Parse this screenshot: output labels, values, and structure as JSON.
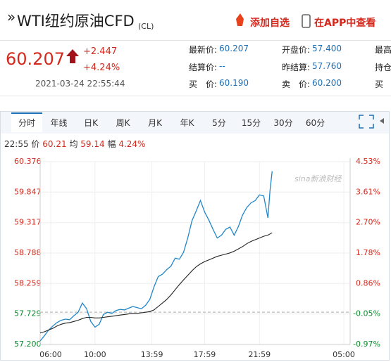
{
  "header": {
    "title": "WTI纽约原油CFD",
    "code": "(CL)",
    "add_watchlist": "添加自选",
    "view_in_app": "在APP中查看"
  },
  "quote": {
    "price": "60.207",
    "change": "+2.447",
    "change_pct": "+4.24%",
    "time": "2021-03-24 22:55:44",
    "fields": [
      {
        "label": "最新价:",
        "value": "60.207"
      },
      {
        "label": "开盘价:",
        "value": "57.400"
      },
      {
        "label": "最高"
      },
      {
        "label": "结算价:",
        "value": "--"
      },
      {
        "label": "昨结算:",
        "value": "57.760"
      },
      {
        "label": "持仓"
      },
      {
        "label": "买　价:",
        "value": "60.190"
      },
      {
        "label": "卖　价:",
        "value": "60.200"
      },
      {
        "label": "买"
      }
    ]
  },
  "tabs": [
    "分时",
    "年线",
    "日K",
    "周K",
    "月K",
    "年K",
    "5分",
    "15分",
    "30分",
    "60分"
  ],
  "info": {
    "time": "22:55",
    "price_label": "价",
    "price": "60.21",
    "avg_label": "均",
    "avg": "59.14",
    "amp_label": "幅",
    "amp": "4.24%"
  },
  "watermark": "sina新浪财经",
  "chart_data": {
    "type": "line",
    "x": [
      0,
      2,
      4,
      6,
      8,
      10,
      12,
      14,
      16,
      18,
      20,
      22,
      24,
      26,
      28,
      30,
      32,
      34,
      36,
      38,
      40,
      42,
      44,
      46,
      48,
      50,
      52,
      54,
      56,
      58,
      60,
      62,
      64,
      66,
      68,
      70,
      72,
      74,
      76,
      78,
      80,
      82,
      84,
      86,
      88,
      90,
      92,
      94,
      96,
      98,
      100,
      102,
      104,
      106,
      108,
      109,
      110
    ],
    "series": [
      {
        "color": "#1f86c9",
        "values": [
          57.26,
          57.35,
          57.45,
          57.52,
          57.58,
          57.62,
          57.64,
          57.63,
          57.7,
          57.76,
          57.92,
          57.82,
          57.6,
          57.5,
          57.55,
          57.72,
          57.76,
          57.74,
          57.79,
          57.81,
          57.8,
          57.83,
          57.86,
          57.84,
          57.82,
          57.88,
          57.98,
          58.2,
          58.38,
          58.42,
          58.5,
          58.56,
          58.7,
          58.68,
          58.8,
          59.05,
          59.35,
          59.52,
          59.7,
          59.5,
          59.36,
          59.2,
          59.05,
          59.1,
          59.2,
          59.24,
          59.1,
          59.25,
          59.45,
          59.58,
          59.66,
          59.7,
          59.8,
          59.78,
          59.4,
          59.88,
          60.21
        ]
      },
      {
        "color": "#222222",
        "values": [
          57.4,
          57.42,
          57.45,
          57.48,
          57.52,
          57.55,
          57.57,
          57.58,
          57.6,
          57.62,
          57.65,
          57.67,
          57.67,
          57.66,
          57.66,
          57.67,
          57.68,
          57.69,
          57.7,
          57.71,
          57.72,
          57.73,
          57.74,
          57.74,
          57.75,
          57.76,
          57.77,
          57.8,
          57.86,
          57.92,
          57.98,
          58.06,
          58.15,
          58.24,
          58.32,
          58.4,
          58.48,
          58.55,
          58.6,
          58.64,
          58.67,
          58.7,
          58.73,
          58.75,
          58.77,
          58.79,
          58.82,
          58.86,
          58.9,
          58.95,
          58.99,
          59.02,
          59.05,
          59.08,
          59.1,
          59.12,
          59.14
        ]
      }
    ],
    "xlim": [
      0,
      147
    ],
    "xticks": [
      {
        "value": 5,
        "label": "06:00"
      },
      {
        "value": 26,
        "label": "10:00"
      },
      {
        "value": 53,
        "label": "13:59"
      },
      {
        "value": 78,
        "label": "17:59"
      },
      {
        "value": 104,
        "label": "21:59"
      },
      {
        "value": 144,
        "label": "05:00"
      }
    ],
    "ylim": [
      57.2,
      60.376
    ],
    "yticks": [
      {
        "value": 57.2,
        "label": "57.200"
      },
      57.729,
      58.259,
      58.788,
      59.317,
      59.847,
      60.376
    ],
    "y2lim": [
      -0.97,
      4.53
    ],
    "y2ticks": [
      {
        "value": -0.97,
        "label": "-0.97%"
      },
      {
        "value": -0.05,
        "label": "-0.05%"
      },
      {
        "value": 0.86,
        "label": "0.86%"
      },
      {
        "value": 1.78,
        "label": "1.78%"
      },
      {
        "value": 2.7,
        "label": "2.70%"
      },
      {
        "value": 3.61,
        "label": "3.61%"
      },
      {
        "value": 4.53,
        "label": "4.53%"
      }
    ],
    "baseline": 57.76,
    "grid": true,
    "up_color": "#d4281c",
    "down_color": "#0b8a2b"
  }
}
